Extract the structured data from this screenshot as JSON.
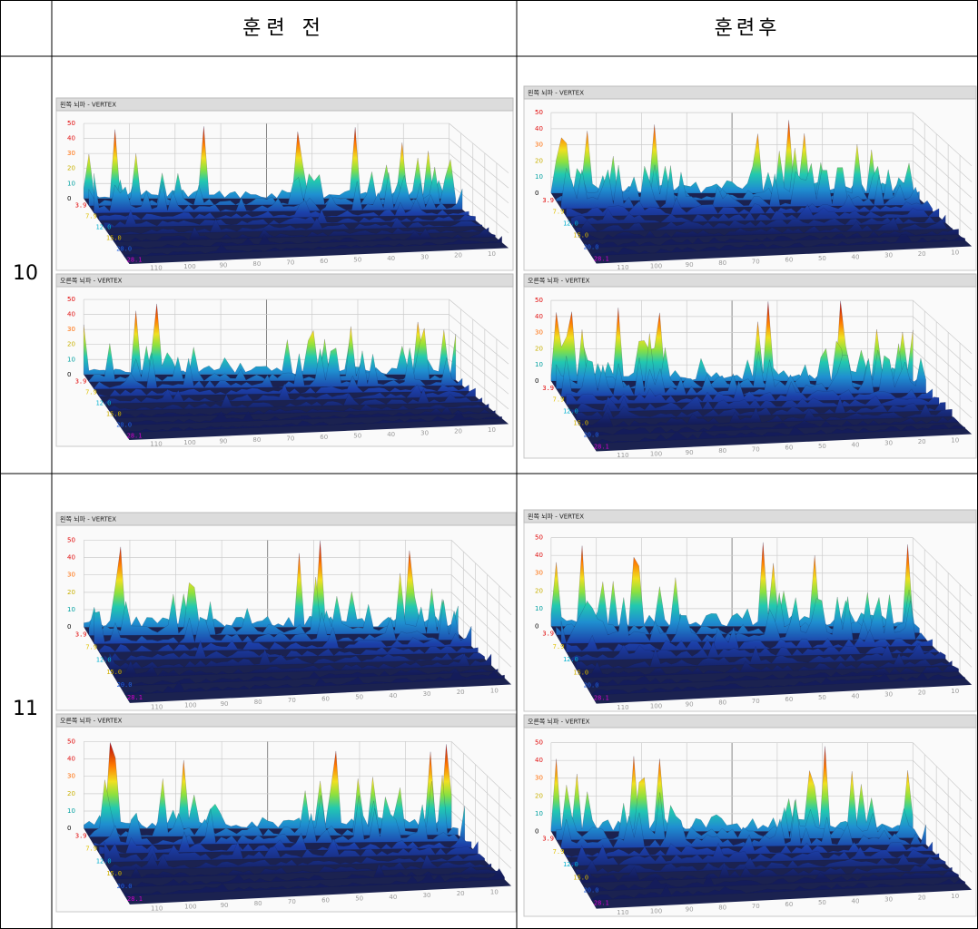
{
  "header": {
    "before": "훈련 전",
    "after": "훈련후"
  },
  "rows": [
    {
      "label": "10"
    },
    {
      "label": "11"
    }
  ],
  "panel_titles": {
    "left": "왼쪽 뇌파 - VERTEX",
    "right": "오른쪽 뇌파 - VERTEX"
  },
  "panel_axes": {
    "z_ticks": [
      "50",
      "40",
      "30",
      "20",
      "10",
      "0"
    ],
    "depth_ticks": [
      "3.9",
      "7.9",
      "12.0",
      "15.0",
      "20.0",
      "28.1"
    ],
    "x_ticks": [
      "110",
      "100",
      "90",
      "80",
      "70",
      "60",
      "50",
      "40",
      "30",
      "20",
      "10"
    ]
  }
}
